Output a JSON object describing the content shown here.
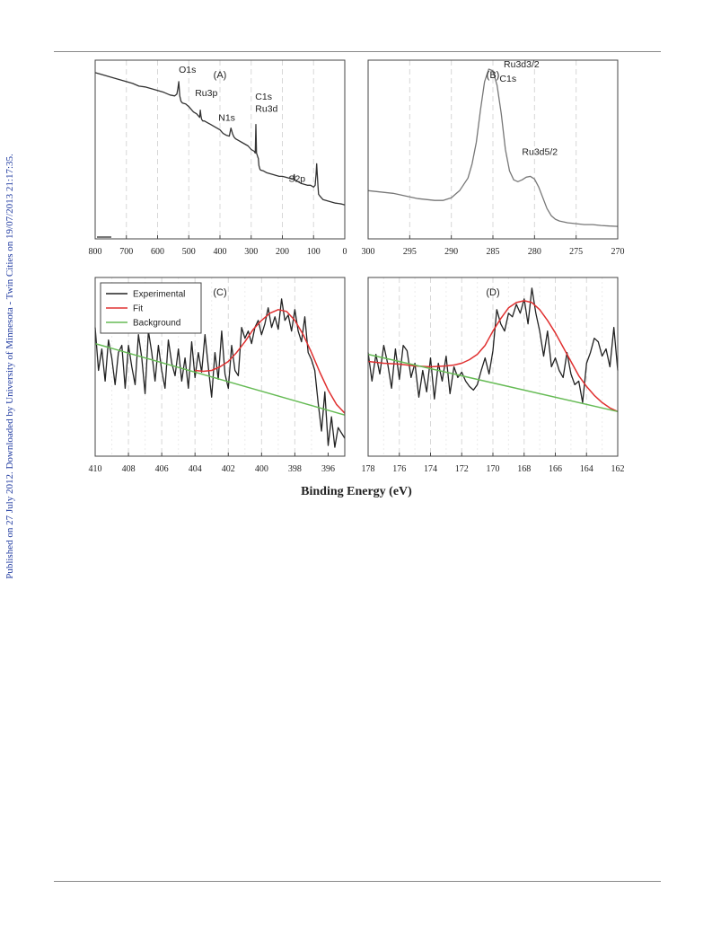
{
  "page": {
    "side_note": "Published on 27 July 2012. Downloaded by University of Minnesota - Twin Cities on 19/07/2013 21:17:35.",
    "common_xlabel": "Binding Energy (eV)"
  },
  "colors": {
    "experimental": "#222222",
    "fit": "#e03030",
    "background": "#66bb55",
    "survey": "#333333",
    "panel_b_line": "#777777"
  },
  "chart_data": [
    {
      "type": "line",
      "panel": "(A)",
      "x_reversed": true,
      "xlim": [
        800,
        0
      ],
      "xticks": [
        800,
        700,
        600,
        500,
        400,
        300,
        200,
        100,
        0
      ],
      "ylim": [
        0,
        1
      ],
      "grid": true,
      "series": [
        {
          "color": "#333333",
          "x": [
            800,
            780,
            760,
            740,
            720,
            700,
            680,
            660,
            640,
            620,
            600,
            580,
            560,
            545,
            538,
            535,
            532,
            529,
            525,
            520,
            510,
            500,
            490,
            485,
            480,
            475,
            470,
            465,
            463,
            461,
            459,
            455,
            450,
            440,
            430,
            420,
            410,
            400,
            395,
            390,
            380,
            370,
            365,
            360,
            355,
            350,
            340,
            330,
            320,
            310,
            300,
            295,
            290,
            287,
            285,
            283,
            281,
            279,
            277,
            275,
            272,
            270,
            260,
            250,
            240,
            230,
            220,
            210,
            200,
            190,
            180,
            170,
            165,
            162,
            160,
            150,
            140,
            130,
            120,
            110,
            100,
            95,
            92,
            90,
            88,
            86,
            84,
            80,
            75,
            70,
            60,
            50,
            40,
            30,
            20,
            10,
            0
          ],
          "y": [
            0.93,
            0.92,
            0.91,
            0.9,
            0.89,
            0.88,
            0.87,
            0.855,
            0.85,
            0.84,
            0.83,
            0.82,
            0.805,
            0.8,
            0.81,
            0.84,
            0.88,
            0.8,
            0.77,
            0.76,
            0.755,
            0.74,
            0.72,
            0.71,
            0.705,
            0.7,
            0.69,
            0.68,
            0.72,
            0.69,
            0.67,
            0.66,
            0.66,
            0.65,
            0.64,
            0.63,
            0.62,
            0.61,
            0.6,
            0.59,
            0.58,
            0.575,
            0.62,
            0.59,
            0.57,
            0.56,
            0.55,
            0.54,
            0.53,
            0.52,
            0.5,
            0.495,
            0.49,
            0.48,
            0.64,
            0.48,
            0.47,
            0.46,
            0.45,
            0.41,
            0.39,
            0.385,
            0.38,
            0.37,
            0.365,
            0.36,
            0.355,
            0.35,
            0.35,
            0.345,
            0.34,
            0.335,
            0.335,
            0.36,
            0.33,
            0.32,
            0.31,
            0.305,
            0.3,
            0.3,
            0.29,
            0.3,
            0.36,
            0.42,
            0.36,
            0.3,
            0.25,
            0.24,
            0.23,
            0.22,
            0.215,
            0.21,
            0.205,
            0.2,
            0.198,
            0.195,
            0.19
          ]
        }
      ],
      "annotations": [
        {
          "text": "O1s",
          "x": 532,
          "y": 0.93
        },
        {
          "text": "Ru3p",
          "x": 480,
          "y": 0.8
        },
        {
          "text": "N1s",
          "x": 405,
          "y": 0.66
        },
        {
          "text": "C1s",
          "x": 287,
          "y": 0.78
        },
        {
          "text": "Ru3d",
          "x": 287,
          "y": 0.71
        },
        {
          "text": "S2p",
          "x": 180,
          "y": 0.32
        }
      ]
    },
    {
      "type": "line",
      "panel": "(B)",
      "x_reversed": true,
      "xlim": [
        300,
        270
      ],
      "xticks": [
        300,
        295,
        290,
        285,
        280,
        275,
        270
      ],
      "ylim": [
        0,
        1
      ],
      "grid": true,
      "series": [
        {
          "color": "#777777",
          "x": [
            300,
            299,
            298,
            297,
            296,
            295,
            294,
            293,
            292,
            291,
            290,
            289,
            288,
            287.5,
            287,
            286.5,
            286,
            285.5,
            285,
            284.5,
            284,
            283.5,
            283,
            282.5,
            282,
            281.5,
            281,
            280.5,
            280,
            279.5,
            279,
            278.5,
            278,
            277.5,
            277,
            276,
            275,
            274,
            273,
            272,
            271,
            270
          ],
          "y": [
            0.27,
            0.265,
            0.26,
            0.255,
            0.245,
            0.235,
            0.225,
            0.22,
            0.215,
            0.215,
            0.23,
            0.27,
            0.34,
            0.42,
            0.54,
            0.72,
            0.88,
            0.95,
            0.94,
            0.86,
            0.7,
            0.5,
            0.38,
            0.33,
            0.32,
            0.33,
            0.345,
            0.35,
            0.335,
            0.29,
            0.23,
            0.17,
            0.13,
            0.11,
            0.1,
            0.09,
            0.085,
            0.08,
            0.08,
            0.075,
            0.072,
            0.07
          ]
        }
      ],
      "annotations": [
        {
          "text": "Ru3d3/2",
          "x": 283.7,
          "y": 0.96
        },
        {
          "text": "C1s",
          "x": 284.2,
          "y": 0.88
        },
        {
          "text": "Ru3d5/2",
          "x": 281.5,
          "y": 0.47
        }
      ]
    },
    {
      "type": "line",
      "panel": "(C)",
      "x_reversed": true,
      "xlim": [
        410,
        395
      ],
      "xticks": [
        410,
        408,
        406,
        404,
        402,
        400,
        398,
        396
      ],
      "ylim": [
        0,
        1
      ],
      "grid": true,
      "legend": "top-left",
      "series": [
        {
          "name": "Experimental",
          "color": "#222222",
          "x": [
            410,
            409.8,
            409.6,
            409.4,
            409.2,
            409,
            408.8,
            408.6,
            408.4,
            408.2,
            408,
            407.8,
            407.6,
            407.4,
            407.2,
            407,
            406.8,
            406.6,
            406.4,
            406.2,
            406,
            405.8,
            405.6,
            405.4,
            405.2,
            405,
            404.8,
            404.6,
            404.4,
            404.2,
            404,
            403.8,
            403.6,
            403.4,
            403.2,
            403,
            402.8,
            402.6,
            402.4,
            402.2,
            402,
            401.8,
            401.6,
            401.4,
            401.2,
            401,
            400.8,
            400.6,
            400.4,
            400.2,
            400,
            399.8,
            399.6,
            399.4,
            399.2,
            399,
            398.8,
            398.6,
            398.4,
            398.2,
            398,
            397.8,
            397.6,
            397.4,
            397.2,
            397,
            396.8,
            396.6,
            396.4,
            396.2,
            396,
            395.8,
            395.6,
            395.4,
            395.2,
            395
          ],
          "y": [
            0.72,
            0.48,
            0.6,
            0.42,
            0.65,
            0.55,
            0.4,
            0.58,
            0.62,
            0.38,
            0.62,
            0.5,
            0.4,
            0.68,
            0.55,
            0.35,
            0.7,
            0.58,
            0.42,
            0.62,
            0.48,
            0.38,
            0.65,
            0.52,
            0.45,
            0.6,
            0.42,
            0.55,
            0.38,
            0.64,
            0.44,
            0.58,
            0.47,
            0.68,
            0.5,
            0.33,
            0.58,
            0.43,
            0.7,
            0.46,
            0.38,
            0.62,
            0.48,
            0.45,
            0.72,
            0.66,
            0.7,
            0.63,
            0.72,
            0.76,
            0.68,
            0.74,
            0.83,
            0.72,
            0.78,
            0.71,
            0.88,
            0.76,
            0.79,
            0.7,
            0.82,
            0.7,
            0.64,
            0.78,
            0.58,
            0.54,
            0.48,
            0.3,
            0.14,
            0.36,
            0.06,
            0.22,
            0.05,
            0.16,
            0.13,
            0.1
          ]
        },
        {
          "name": "Fit",
          "color": "#e03030",
          "x": [
            404,
            403.5,
            403,
            402.5,
            402,
            401.5,
            401,
            400.5,
            400,
            399.5,
            399,
            398.5,
            398,
            397.5,
            397,
            396.5,
            396,
            395.5,
            395
          ],
          "y": [
            0.48,
            0.475,
            0.48,
            0.5,
            0.53,
            0.58,
            0.64,
            0.71,
            0.76,
            0.8,
            0.82,
            0.81,
            0.76,
            0.68,
            0.58,
            0.47,
            0.37,
            0.29,
            0.24
          ]
        },
        {
          "name": "Background",
          "color": "#66bb55",
          "x": [
            410,
            395
          ],
          "y": [
            0.63,
            0.23
          ]
        }
      ]
    },
    {
      "type": "line",
      "panel": "(D)",
      "x_reversed": true,
      "xlim": [
        178,
        162
      ],
      "xticks": [
        178,
        176,
        174,
        172,
        170,
        168,
        166,
        164,
        162
      ],
      "ylim": [
        0,
        1
      ],
      "grid": true,
      "series": [
        {
          "name": "Experimental",
          "color": "#222222",
          "x": [
            178,
            177.75,
            177.5,
            177.25,
            177,
            176.75,
            176.5,
            176.25,
            176,
            175.75,
            175.5,
            175.25,
            175,
            174.75,
            174.5,
            174.25,
            174,
            173.75,
            173.5,
            173.25,
            173,
            172.75,
            172.5,
            172.25,
            172,
            171.75,
            171.5,
            171.25,
            171,
            170.75,
            170.5,
            170.25,
            170,
            169.75,
            169.5,
            169.25,
            169,
            168.75,
            168.5,
            168.25,
            168,
            167.75,
            167.5,
            167.25,
            167,
            166.75,
            166.5,
            166.25,
            166,
            165.75,
            165.5,
            165.25,
            165,
            164.75,
            164.5,
            164.25,
            164,
            163.75,
            163.5,
            163.25,
            163,
            162.75,
            162.5,
            162.25,
            162
          ],
          "y": [
            0.58,
            0.42,
            0.57,
            0.46,
            0.62,
            0.52,
            0.38,
            0.6,
            0.43,
            0.62,
            0.59,
            0.44,
            0.52,
            0.33,
            0.48,
            0.36,
            0.55,
            0.32,
            0.52,
            0.42,
            0.56,
            0.35,
            0.5,
            0.44,
            0.47,
            0.42,
            0.39,
            0.37,
            0.4,
            0.48,
            0.55,
            0.46,
            0.59,
            0.82,
            0.74,
            0.7,
            0.8,
            0.78,
            0.85,
            0.8,
            0.88,
            0.74,
            0.94,
            0.8,
            0.7,
            0.56,
            0.7,
            0.5,
            0.55,
            0.48,
            0.44,
            0.58,
            0.46,
            0.4,
            0.42,
            0.3,
            0.52,
            0.58,
            0.66,
            0.64,
            0.56,
            0.6,
            0.5,
            0.72,
            0.48
          ]
        },
        {
          "name": "Fit",
          "color": "#e03030",
          "x": [
            178,
            177,
            176,
            175,
            174,
            173,
            172.5,
            172,
            171.5,
            171,
            170.5,
            170,
            169.5,
            169,
            168.5,
            168,
            167.5,
            167,
            166.5,
            166,
            165.5,
            165,
            164.5,
            164,
            163.5,
            163,
            162.5,
            162
          ],
          "y": [
            0.53,
            0.52,
            0.515,
            0.505,
            0.5,
            0.505,
            0.51,
            0.52,
            0.54,
            0.57,
            0.62,
            0.7,
            0.77,
            0.83,
            0.86,
            0.87,
            0.86,
            0.82,
            0.76,
            0.69,
            0.61,
            0.53,
            0.45,
            0.39,
            0.34,
            0.3,
            0.27,
            0.25
          ]
        },
        {
          "name": "Background",
          "color": "#66bb55",
          "x": [
            178,
            162
          ],
          "y": [
            0.57,
            0.25
          ]
        }
      ]
    }
  ]
}
